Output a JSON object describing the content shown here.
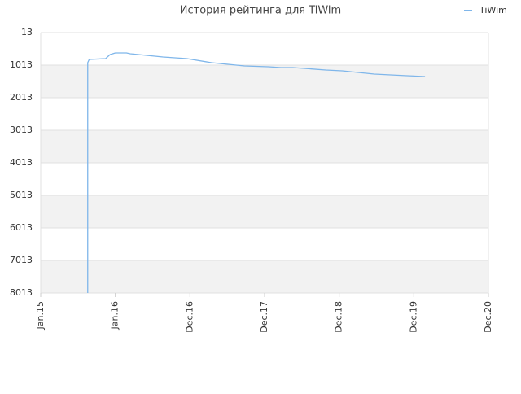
{
  "chart_data": {
    "type": "line",
    "title": "История рейтинга для TiWim",
    "series": [
      {
        "name": "TiWim",
        "color": "#7fb6ea",
        "x": [
          2015.63,
          2015.63,
          2015.65,
          2015.87,
          2015.93,
          2016.0,
          2016.15,
          2016.2,
          2016.42,
          2016.64,
          2016.96,
          2017.29,
          2017.51,
          2017.73,
          2018.05,
          2018.22,
          2018.38,
          2018.82,
          2019.04,
          2019.47,
          2019.91,
          2020.15
        ],
        "values": [
          8013,
          938,
          838,
          813,
          688,
          638,
          638,
          663,
          713,
          763,
          813,
          938,
          988,
          1038,
          1063,
          1088,
          1088,
          1163,
          1188,
          1288,
          1338,
          1363
        ]
      }
    ],
    "ylim": [
      8013,
      13
    ],
    "yticks": [
      13,
      1013,
      2013,
      3013,
      4013,
      5013,
      6013,
      7013,
      8013
    ],
    "xlim": [
      2015,
      2021
    ],
    "xticks": [
      {
        "value": 2015,
        "label": "Jan.15"
      },
      {
        "value": 2016,
        "label": "Jan.16"
      },
      {
        "value": 2017,
        "label": "Dec.16"
      },
      {
        "value": 2018,
        "label": "Dec.17"
      },
      {
        "value": 2019,
        "label": "Dec.18"
      },
      {
        "value": 2020,
        "label": "Dec.19"
      },
      {
        "value": 2021,
        "label": "Dec.20"
      }
    ],
    "grid": true,
    "legend": "top-right"
  }
}
